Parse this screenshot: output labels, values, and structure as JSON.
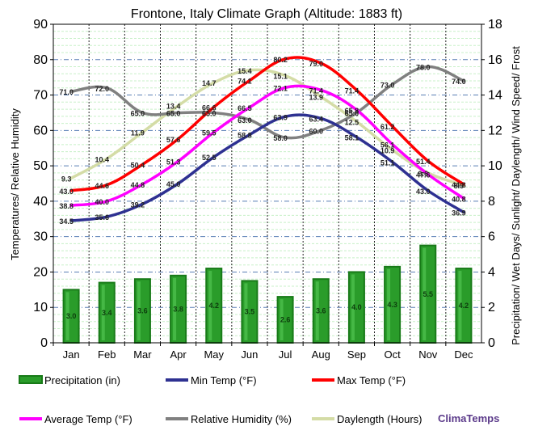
{
  "chart_data": {
    "type": "bar+line",
    "title": "Frontone, Italy Climate Graph (Altitude: 1883 ft)",
    "ylabel_left": "Temperatures/ Relative Humidity",
    "ylabel_right": "Precipitation/ Wet Days/ Sunlight/ Daylength/ Wind Speed/ Frost",
    "ylim_left": [
      0,
      90
    ],
    "ylim_right": [
      0,
      18
    ],
    "yticks_left": [
      "0",
      "10",
      "20",
      "30",
      "40",
      "50",
      "60",
      "70",
      "80",
      "90"
    ],
    "yticks_right": [
      "0",
      "2",
      "4",
      "6",
      "8",
      "10",
      "12",
      "14",
      "16",
      "18"
    ],
    "categories": [
      "Jan",
      "Feb",
      "Mar",
      "Apr",
      "May",
      "Jun",
      "Jul",
      "Aug",
      "Sep",
      "Oct",
      "Nov",
      "Dec"
    ],
    "series": [
      {
        "name": "Precipitation (in)",
        "axis": "right",
        "kind": "bar",
        "color": "#2a9c2a",
        "values": [
          3.0,
          3.4,
          3.6,
          3.8,
          4.2,
          3.5,
          2.6,
          3.6,
          4.0,
          4.3,
          5.5,
          4.2
        ],
        "labels": [
          "3.0",
          "3.4",
          "3.6",
          "3.8",
          "4.2",
          "3.5",
          "2.6",
          "3.6",
          "4.0",
          "4.3",
          "5.5",
          "4.2"
        ]
      },
      {
        "name": "Daylength (Hours)",
        "axis": "right",
        "kind": "line",
        "color": "#d4dca6",
        "values": [
          9.3,
          10.4,
          11.9,
          13.4,
          14.7,
          15.4,
          15.1,
          13.9,
          12.5,
          10.9,
          9.6,
          8.9
        ],
        "labels": [
          "9.3",
          "10.4",
          "11.9",
          "13.4",
          "14.7",
          "15.4",
          "15.1",
          "13.9",
          "12.5",
          "10.9",
          "9.6",
          "8.9"
        ]
      },
      {
        "name": "Relative Humidity (%)",
        "axis": "left",
        "kind": "line",
        "color": "#808080",
        "values": [
          71.0,
          72.0,
          65.0,
          65.0,
          65.0,
          63.0,
          58.0,
          60.0,
          65.0,
          73.0,
          78.0,
          74.0
        ],
        "labels": [
          "71.0",
          "72.0",
          "65.0",
          "65.0",
          "65.0",
          "63.0",
          "58.0",
          "60.0",
          "65.0",
          "73.0",
          "78.0",
          "74.0"
        ]
      },
      {
        "name": "Min Temp (°F)",
        "axis": "left",
        "kind": "line",
        "color": "#2e3191",
        "values": [
          34.5,
          35.6,
          39.2,
          45.0,
          52.5,
          58.8,
          63.9,
          63.4,
          58.1,
          51.1,
          43.0,
          36.9
        ],
        "labels": [
          "34.5",
          "35.6",
          "39.2",
          "45.0",
          "52.5",
          "58.8",
          "63.9",
          "63.4",
          "58.1",
          "51.1",
          "43.0",
          "36.9"
        ]
      },
      {
        "name": "Average Temp (°F)",
        "axis": "left",
        "kind": "line",
        "color": "#ff00ff",
        "values": [
          38.8,
          40.0,
          44.8,
          51.3,
          59.5,
          66.5,
          72.1,
          71.4,
          65.8,
          56.1,
          47.6,
          40.8
        ],
        "labels": [
          "38.8",
          "40.0",
          "44.8",
          "51.3",
          "59.5",
          "66.5",
          "72.1",
          "71.4",
          "65.8",
          "56.1",
          "47.6",
          "40.8"
        ]
      },
      {
        "name": "Max Temp (°F)",
        "axis": "left",
        "kind": "line",
        "color": "#ff0000",
        "values": [
          43.0,
          44.6,
          50.4,
          57.6,
          66.6,
          74.1,
          80.2,
          79.0,
          71.4,
          61.2,
          51.4,
          44.8
        ],
        "labels": [
          "43.0",
          "44.6",
          "50.4",
          "57.6",
          "66.6",
          "74.1",
          "80.2",
          "79.0",
          "71.4",
          "61.2",
          "51.4",
          "44.8"
        ]
      }
    ],
    "legend": [
      "Precipitation (in)",
      "Min Temp (°F)",
      "Max Temp (°F)",
      "Average Temp (°F)",
      "Relative Humidity (%)",
      "Daylength (Hours)"
    ],
    "legend_placement": "bottom",
    "brand": "ClimaTemps",
    "brand_color": "#5b3a8a",
    "grid": true
  }
}
